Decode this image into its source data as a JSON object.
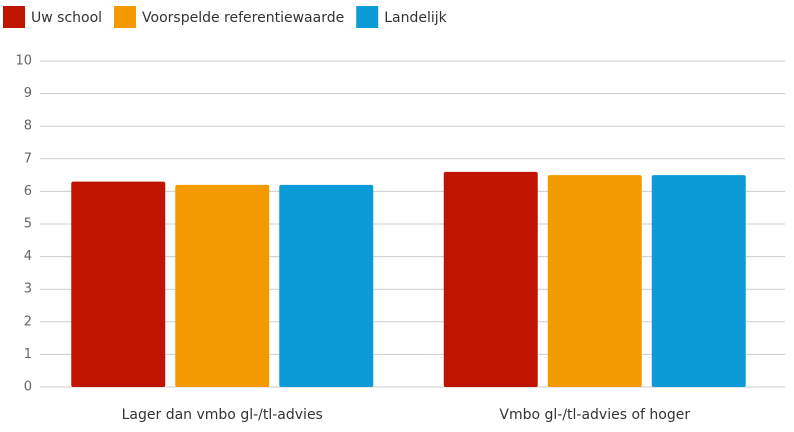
{
  "chart_data": {
    "type": "bar",
    "categories": [
      "Lager dan vmbo gl-/tl-advies",
      "Vmbo gl-/tl-advies of hoger"
    ],
    "series": [
      {
        "name": "Uw school",
        "color": "#bf1500",
        "values": [
          6.3,
          6.6
        ]
      },
      {
        "name": "Voorspelde referentiewaarde",
        "color": "#f29a00",
        "values": [
          6.2,
          6.5
        ]
      },
      {
        "name": "Landelijk",
        "color": "#0c9bd7",
        "values": [
          6.2,
          6.5
        ]
      }
    ],
    "ylim": [
      0,
      10
    ],
    "yticks": [
      0,
      1,
      2,
      3,
      4,
      5,
      6,
      7,
      8,
      9,
      10
    ],
    "grid": true,
    "legend": "top-left"
  }
}
